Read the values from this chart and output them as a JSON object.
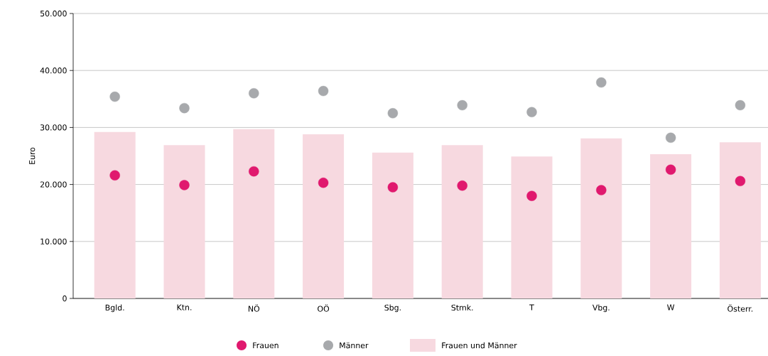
{
  "chart_data": {
    "type": "bar",
    "ylabel": "Euro",
    "categories": [
      "Bgld.",
      "Ktn.",
      "NÖ",
      "OÖ",
      "Sbg.",
      "Stmk.",
      "T",
      "Vbg.",
      "W",
      "Österr."
    ],
    "series": [
      {
        "name": "Frauen",
        "type": "scatter",
        "color": "#e0196e",
        "values": [
          21600,
          19900,
          22300,
          20300,
          19500,
          19800,
          18000,
          19000,
          22600,
          20600
        ]
      },
      {
        "name": "Männer",
        "type": "scatter",
        "color": "#a7a9ac",
        "values": [
          35400,
          33400,
          36000,
          36400,
          32500,
          33900,
          32700,
          37900,
          28200,
          33900
        ]
      },
      {
        "name": "Frauen und Männer",
        "color": "#f7d9e0",
        "values": [
          29200,
          26900,
          29700,
          28800,
          25600,
          26900,
          24900,
          28100,
          25300,
          27400
        ]
      }
    ],
    "ylim": [
      0,
      50000
    ],
    "yticks": [
      0,
      {
        "value": 10000,
        "label": "10.000"
      },
      {
        "value": 20000,
        "label": "20.000"
      },
      {
        "value": 30000,
        "label": "30.000"
      },
      {
        "value": 40000,
        "label": "40.000"
      },
      {
        "value": 50000,
        "label": "50.000"
      }
    ],
    "grid": "y",
    "legend": "bottom",
    "marker": "circle"
  }
}
